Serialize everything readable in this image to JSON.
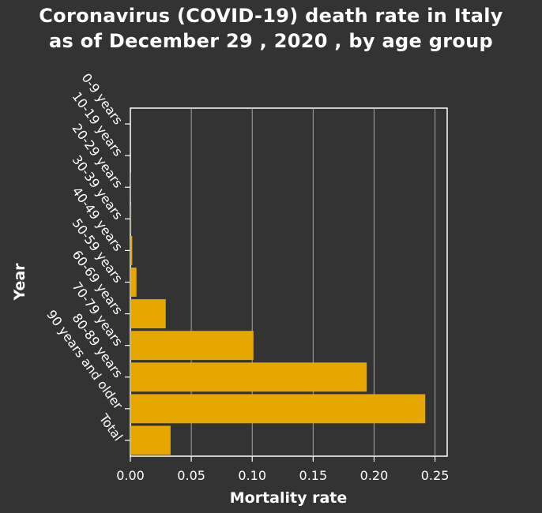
{
  "chart_data": {
    "type": "bar",
    "orientation": "horizontal",
    "title_lines": [
      "Coronavirus (COVID-19) death rate in Italy",
      "as of December 29 , 2020 , by age group"
    ],
    "xlabel": "Mortality rate",
    "ylabel": "Year",
    "categories": [
      "0-9 years",
      "10-19 years",
      "20-29 years",
      "30-39 years",
      "40-49 years",
      "50-59 years",
      "60-69 years",
      "70-79 years",
      "80-89 years",
      "90 years and older",
      "Total"
    ],
    "values": [
      0.0,
      0.0,
      0.0003,
      0.0007,
      0.0015,
      0.005,
      0.029,
      0.101,
      0.194,
      0.242,
      0.033
    ],
    "xlim": [
      0,
      0.26
    ],
    "xticks": [
      "0.00",
      "0.05",
      "0.10",
      "0.15",
      "0.20",
      "0.25"
    ],
    "xtick_values": [
      0,
      0.05,
      0.1,
      0.15,
      0.2,
      0.25
    ],
    "grid": "vertical",
    "colors": {
      "background": "#333333",
      "bar": "#e6a800",
      "grid": "#a6a6a6",
      "axis": "#ffffff",
      "text": "#ffffff"
    }
  }
}
